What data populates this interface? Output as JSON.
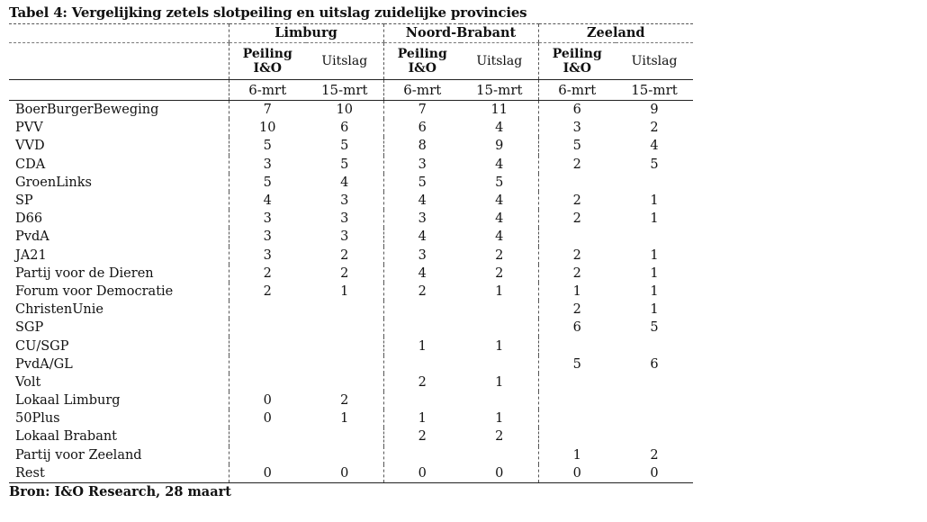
{
  "title": "Tabel 4: Vergelijking zetels slotpeiling en uitslag zuidelijke provincies",
  "provinces": [
    "Limburg",
    "Noord-Brabant",
    "Zeeland"
  ],
  "subheaders": {
    "peiling": "Peiling I&O",
    "uitslag": "Uitslag",
    "date_peiling": "6-mrt",
    "date_uitslag": "15-mrt"
  },
  "rows": [
    {
      "party": "BoerBurgerBeweging",
      "values": [
        "7",
        "10",
        "7",
        "11",
        "6",
        "9"
      ]
    },
    {
      "party": "PVV",
      "values": [
        "10",
        "6",
        "6",
        "4",
        "3",
        "2"
      ]
    },
    {
      "party": "VVD",
      "values": [
        "5",
        "5",
        "8",
        "9",
        "5",
        "4"
      ]
    },
    {
      "party": "CDA",
      "values": [
        "3",
        "5",
        "3",
        "4",
        "2",
        "5"
      ]
    },
    {
      "party": "GroenLinks",
      "values": [
        "5",
        "4",
        "5",
        "5",
        "",
        ""
      ]
    },
    {
      "party": "SP",
      "values": [
        "4",
        "3",
        "4",
        "4",
        "2",
        "1"
      ]
    },
    {
      "party": "D66",
      "values": [
        "3",
        "3",
        "3",
        "4",
        "2",
        "1"
      ]
    },
    {
      "party": "PvdA",
      "values": [
        "3",
        "3",
        "4",
        "4",
        "",
        ""
      ]
    },
    {
      "party": "JA21",
      "values": [
        "3",
        "2",
        "3",
        "2",
        "2",
        "1"
      ]
    },
    {
      "party": "Partij voor de Dieren",
      "values": [
        "2",
        "2",
        "4",
        "2",
        "2",
        "1"
      ]
    },
    {
      "party": "Forum voor Democratie",
      "values": [
        "2",
        "1",
        "2",
        "1",
        "1",
        "1"
      ]
    },
    {
      "party": "ChristenUnie",
      "values": [
        "",
        "",
        "",
        "",
        "2",
        "1"
      ]
    },
    {
      "party": "SGP",
      "values": [
        "",
        "",
        "",
        "",
        "6",
        "5"
      ]
    },
    {
      "party": "CU/SGP",
      "values": [
        "",
        "",
        "1",
        "1",
        "",
        ""
      ]
    },
    {
      "party": "PvdA/GL",
      "values": [
        "",
        "",
        "",
        "",
        "5",
        "6"
      ]
    },
    {
      "party": "Volt",
      "values": [
        "",
        "",
        "2",
        "1",
        "",
        ""
      ]
    },
    {
      "party": "Lokaal Limburg",
      "values": [
        "0",
        "2",
        "",
        "",
        "",
        ""
      ]
    },
    {
      "party": "50Plus",
      "values": [
        "0",
        "1",
        "1",
        "1",
        "",
        ""
      ]
    },
    {
      "party": "Lokaal Brabant",
      "values": [
        "",
        "",
        "2",
        "2",
        "",
        ""
      ]
    },
    {
      "party": "Partij voor Zeeland",
      "values": [
        "",
        "",
        "",
        "",
        "1",
        "2"
      ]
    },
    {
      "party": "Rest",
      "values": [
        "0",
        "0",
        "0",
        "0",
        "0",
        "0"
      ]
    }
  ],
  "source": "Bron: I&O Research, 28 maart"
}
